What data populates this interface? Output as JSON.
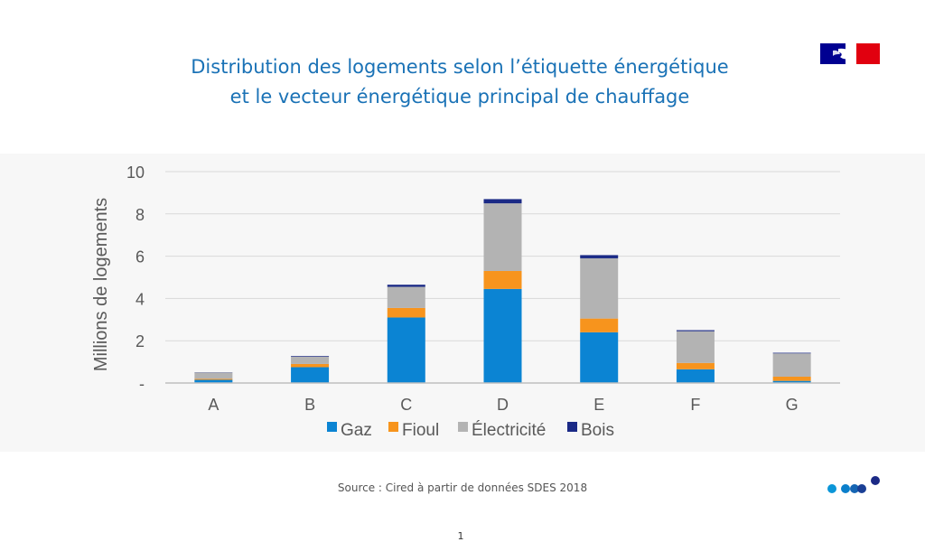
{
  "header": {
    "title_line1": "Distribution des logements selon l’étiquette énergétique",
    "title_line2": "et le vecteur énergétique principal de chauffage"
  },
  "footer": {
    "source": "Source : Cired à partir de données SDES 2018",
    "page_number": "1"
  },
  "colors": {
    "title": "#1a72b6",
    "flag_blue": "#000091",
    "flag_red": "#e1000f"
  },
  "chart_data": {
    "type": "bar",
    "stacked": true,
    "categories": [
      "A",
      "B",
      "C",
      "D",
      "E",
      "F",
      "G"
    ],
    "series": [
      {
        "name": "Gaz",
        "color": "#0b84d3",
        "values": [
          0.15,
          0.75,
          3.1,
          4.45,
          2.4,
          0.65,
          0.1
        ]
      },
      {
        "name": "Fioul",
        "color": "#f7941d",
        "values": [
          0.05,
          0.15,
          0.45,
          0.85,
          0.65,
          0.3,
          0.2
        ]
      },
      {
        "name": "Électricité",
        "color": "#b3b3b3",
        "values": [
          0.3,
          0.35,
          1.0,
          3.2,
          2.85,
          1.5,
          1.1
        ]
      },
      {
        "name": "Bois",
        "color": "#1b2a86",
        "values": [
          0.01,
          0.03,
          0.1,
          0.2,
          0.15,
          0.05,
          0.03
        ]
      }
    ],
    "ylabel": "Millions de logements",
    "xlabel": "",
    "yticks": [
      "-",
      "2",
      "4",
      "6",
      "8",
      "10"
    ],
    "ylim": [
      0,
      10
    ],
    "grid": true,
    "legend": "bottom"
  }
}
